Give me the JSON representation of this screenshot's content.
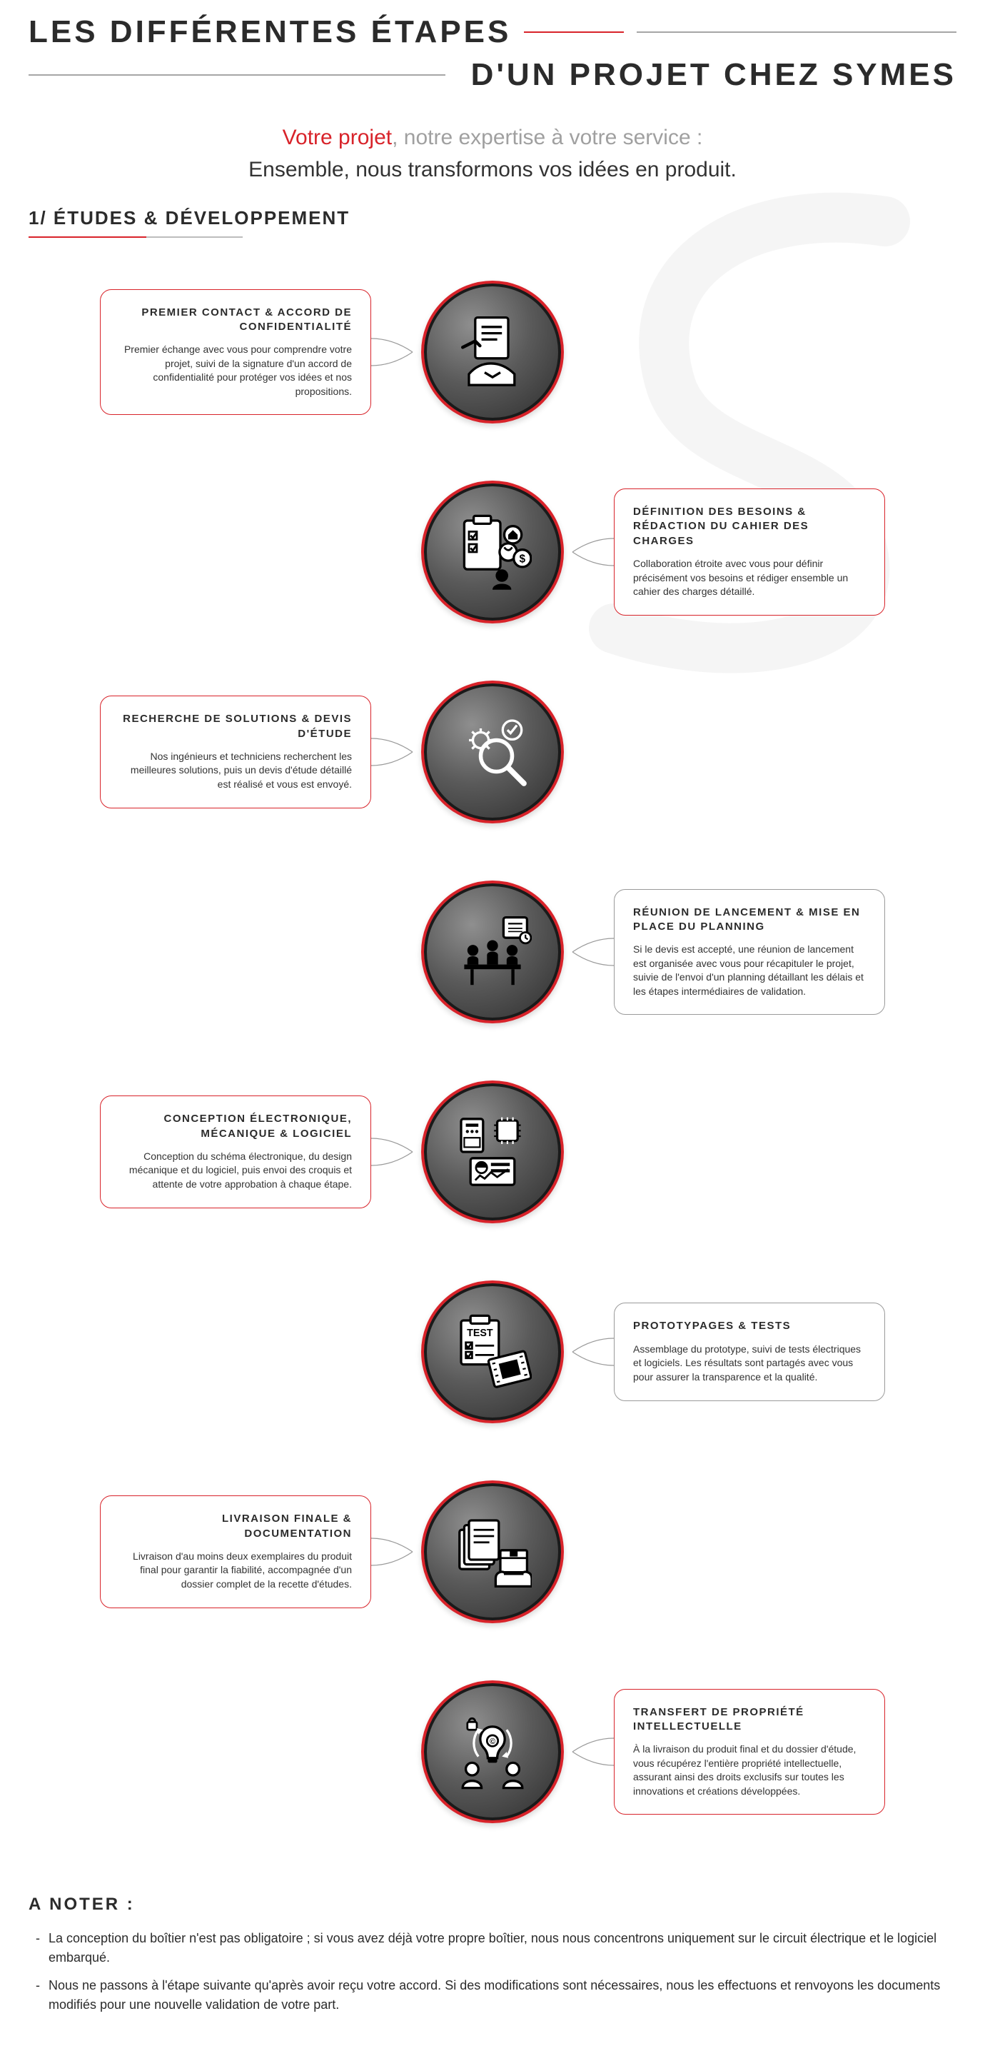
{
  "colors": {
    "accent_red": "#d8232a",
    "grey_border": "#9a9a9a",
    "text": "#2b2b2b",
    "grey_light": "#a0a0a0",
    "coin_ring": "#d8232a",
    "coin_dark": "#2b2b2b",
    "coin_mid": "#5a5a5a",
    "coin_light": "#8f8f8f",
    "background": "#ffffff"
  },
  "typography": {
    "title_fontsize": 44,
    "subtitle_fontsize": 30,
    "section_fontsize": 26,
    "step_title_fontsize": 15,
    "step_body_fontsize": 14,
    "notes_fontsize": 18
  },
  "title": {
    "line1": "LES DIFFÉRENTES ÉTAPES",
    "line2": "D'UN PROJET CHEZ SYMES"
  },
  "subtitle": {
    "red": "Votre projet",
    "grey": ", notre expertise à votre service :",
    "line2": "Ensemble, nous transformons vos idées en produit."
  },
  "section1": {
    "heading": "1/ ÉTUDES & DÉVELOPPEMENT"
  },
  "steps": [
    {
      "side": "left",
      "border": "red",
      "icon": "contract-handshake",
      "title": "PREMIER CONTACT & ACCORD DE CONFIDENTIALITÉ",
      "body": "Premier échange avec vous pour comprendre votre projet, suivi de la signature d'un accord de confidentialité pour protéger vos idées et nos propositions."
    },
    {
      "side": "right",
      "border": "red",
      "icon": "checklist-needs",
      "title": "DÉFINITION DES BESOINS & RÉDACTION DU CAHIER DES CHARGES",
      "body": "Collaboration étroite avec vous pour définir précisément vos besoins et rédiger ensemble un cahier des charges détaillé."
    },
    {
      "side": "left",
      "border": "red",
      "icon": "gear-search",
      "title": "RECHERCHE DE SOLUTIONS & DEVIS D'ÉTUDE",
      "body": "Nos ingénieurs et techniciens recherchent les meilleures solutions, puis un devis d'étude détaillé est réalisé et vous est envoyé."
    },
    {
      "side": "right",
      "border": "grey",
      "icon": "meeting-schedule",
      "title": "RÉUNION DE LANCEMENT & MISE EN PLACE DU PLANNING",
      "body": "Si le devis est accepté, une réunion de lancement est organisée avec vous pour récapituler le projet, suivie de l'envoi d'un planning détaillant les délais et les étapes intermédiaires de validation."
    },
    {
      "side": "left",
      "border": "red",
      "icon": "circuit-design",
      "title": "CONCEPTION ÉLECTRONIQUE, MÉCANIQUE & LOGICIEL",
      "body": "Conception du schéma électronique, du design mécanique et du logiciel, puis envoi des croquis et attente de votre approbation à chaque étape."
    },
    {
      "side": "right",
      "border": "grey",
      "icon": "test-proto",
      "title": "PROTOTYPAGES & TESTS",
      "body": "Assemblage du prototype, suivi de tests électriques et logiciels. Les résultats sont partagés avec vous pour assurer la transparence et la qualité."
    },
    {
      "side": "left",
      "border": "red",
      "icon": "delivery-docs",
      "title": "LIVRAISON FINALE & DOCUMENTATION",
      "body": "Livraison d'au moins deux exemplaires du produit final pour garantir la fiabilité, accompagnée d'un dossier complet de la recette d'études."
    },
    {
      "side": "right",
      "border": "red",
      "icon": "ip-transfer",
      "title": "TRANSFERT DE PROPRIÉTÉ INTELLECTUELLE",
      "body": "À la livraison du produit final et du dossier d'étude, vous récupérez l'entière propriété intellectuelle, assurant ainsi des droits exclusifs sur toutes les innovations et créations développées."
    }
  ],
  "notes": {
    "heading": "A NOTER :",
    "items": [
      "La conception du boîtier n'est pas obligatoire ; si vous avez déjà votre propre boîtier, nous nous concentrons uniquement sur le circuit électrique et le logiciel embarqué.",
      "Nous ne passons à l'étape suivante qu'après avoir reçu votre accord. Si des modifications sont nécessaires, nous les effectuons et renvoyons les documents modifiés pour une nouvelle validation de votre part."
    ]
  }
}
